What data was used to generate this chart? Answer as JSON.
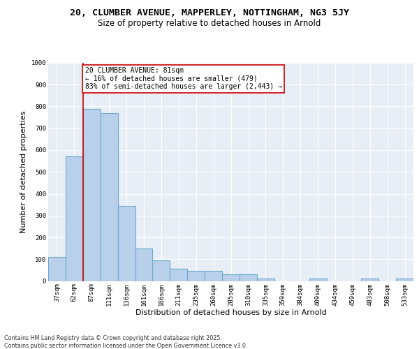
{
  "title_line1": "20, CLUMBER AVENUE, MAPPERLEY, NOTTINGHAM, NG3 5JY",
  "title_line2": "Size of property relative to detached houses in Arnold",
  "xlabel": "Distribution of detached houses by size in Arnold",
  "ylabel": "Number of detached properties",
  "categories": [
    "37sqm",
    "62sqm",
    "87sqm",
    "111sqm",
    "136sqm",
    "161sqm",
    "186sqm",
    "211sqm",
    "235sqm",
    "260sqm",
    "285sqm",
    "310sqm",
    "335sqm",
    "359sqm",
    "384sqm",
    "409sqm",
    "434sqm",
    "459sqm",
    "483sqm",
    "508sqm",
    "533sqm"
  ],
  "values": [
    110,
    570,
    790,
    770,
    345,
    150,
    95,
    55,
    45,
    45,
    30,
    30,
    10,
    0,
    0,
    10,
    0,
    0,
    10,
    0,
    10
  ],
  "bar_color": "#b8d0ea",
  "bar_edge_color": "#6fa8d0",
  "bar_edge_width": 0.8,
  "red_line_x": 1.5,
  "red_line_color": "#cc0000",
  "annotation_text": "20 CLUMBER AVENUE: 81sqm\n← 16% of detached houses are smaller (479)\n83% of semi-detached houses are larger (2,443) →",
  "annotation_box_color": "#ffffff",
  "annotation_box_edge_color": "#cc0000",
  "ylim": [
    0,
    1000
  ],
  "yticks": [
    0,
    100,
    200,
    300,
    400,
    500,
    600,
    700,
    800,
    900,
    1000
  ],
  "background_color": "#e8eef5",
  "footer_text": "Contains HM Land Registry data © Crown copyright and database right 2025.\nContains public sector information licensed under the Open Government Licence v3.0.",
  "title_fontsize": 9.5,
  "subtitle_fontsize": 8.5,
  "tick_fontsize": 6.5,
  "label_fontsize": 8,
  "annotation_fontsize": 7,
  "footer_fontsize": 5.8
}
